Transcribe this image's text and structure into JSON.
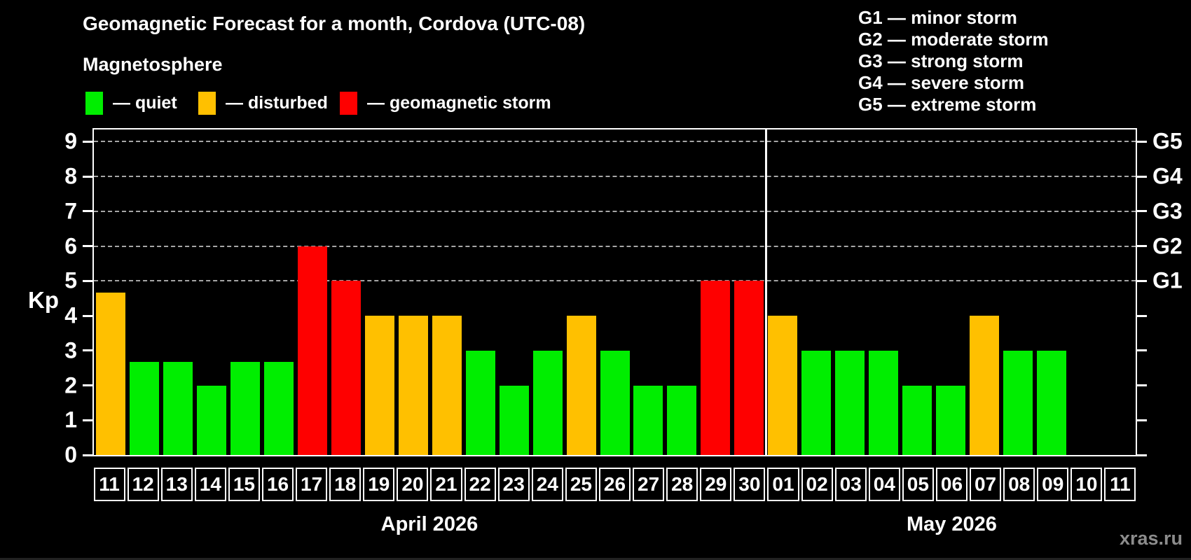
{
  "title": "Geomagnetic Forecast for a month, Cordova (UTC-08)",
  "legend": {
    "heading": "Magnetosphere",
    "items": [
      {
        "label": "— quiet",
        "status": "quiet",
        "color": "#00ee00"
      },
      {
        "label": "— disturbed",
        "status": "disturbed",
        "color": "#ffc000"
      },
      {
        "label": "— geomagnetic storm",
        "status": "storm",
        "color": "#fe0000"
      }
    ]
  },
  "g_legend": [
    "G1 — minor storm",
    "G2 — moderate storm",
    "G3 — strong storm",
    "G4 — severe storm",
    "G5 — extreme storm"
  ],
  "axis": {
    "kp_label": "Kp"
  },
  "watermark": "xras.ru",
  "chart_data": {
    "type": "bar",
    "title": "Geomagnetic Forecast for a month, Cordova (UTC-08)",
    "xlabel": "",
    "ylabel": "Kp",
    "ylim": [
      0,
      9.35
    ],
    "yticks": [
      0,
      1,
      2,
      3,
      4,
      5,
      6,
      7,
      8,
      9
    ],
    "grid": "dashed horizontal lines at Kp 5-9 only",
    "gridline_kp_levels": [
      5,
      6,
      7,
      8,
      9
    ],
    "g_scale": [
      {
        "label": "G1",
        "kp": 5
      },
      {
        "label": "G2",
        "kp": 6
      },
      {
        "label": "G3",
        "kp": 7
      },
      {
        "label": "G4",
        "kp": 8
      },
      {
        "label": "G5",
        "kp": 9
      }
    ],
    "palette": {
      "quiet": "#00ee00",
      "disturbed": "#ffc000",
      "storm": "#fe0000"
    },
    "months": [
      {
        "label": "April 2026",
        "days": 20
      },
      {
        "label": "May 2026",
        "days": 11
      }
    ],
    "categories": [
      "11",
      "12",
      "13",
      "14",
      "15",
      "16",
      "17",
      "18",
      "19",
      "20",
      "21",
      "22",
      "23",
      "24",
      "25",
      "26",
      "27",
      "28",
      "29",
      "30",
      "01",
      "02",
      "03",
      "04",
      "05",
      "06",
      "07",
      "08",
      "09",
      "10",
      "11"
    ],
    "values": [
      4.67,
      2.67,
      2.67,
      2,
      2.67,
      2.67,
      6,
      5,
      4,
      4,
      4,
      3,
      2,
      3,
      4,
      3,
      2,
      2,
      5,
      5,
      4,
      3,
      3,
      3,
      2,
      2,
      4,
      3,
      3,
      null,
      null
    ],
    "statuses": [
      "disturbed",
      "quiet",
      "quiet",
      "quiet",
      "quiet",
      "quiet",
      "storm",
      "storm",
      "disturbed",
      "disturbed",
      "disturbed",
      "quiet",
      "quiet",
      "quiet",
      "disturbed",
      "quiet",
      "quiet",
      "quiet",
      "storm",
      "storm",
      "disturbed",
      "quiet",
      "quiet",
      "quiet",
      "quiet",
      "quiet",
      "disturbed",
      "quiet",
      "quiet",
      null,
      null
    ]
  }
}
